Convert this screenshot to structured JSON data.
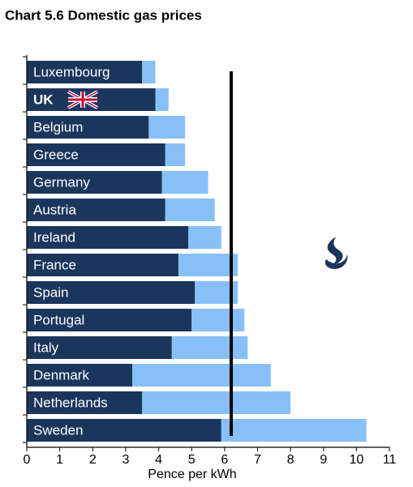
{
  "chart_data": {
    "type": "stacked-bar-horizontal",
    "title": "Chart 5.6 Domestic gas prices",
    "categories": [
      "Luxembourg",
      "UK",
      "Belgium",
      "Greece",
      "Germany",
      "Austria",
      "Ireland",
      "France",
      "Spain",
      "Portugal",
      "Italy",
      "Denmark",
      "Netherlands",
      "Sweden"
    ],
    "series": [
      {
        "color": "#1b365d",
        "values": [
          3.5,
          3.9,
          3.7,
          4.2,
          4.1,
          4.2,
          4.9,
          4.6,
          5.1,
          5.0,
          4.4,
          3.2,
          3.5,
          5.9
        ]
      },
      {
        "color": "#87c0f7",
        "values": [
          0.4,
          0.4,
          1.1,
          0.6,
          1.4,
          1.5,
          1.0,
          1.8,
          1.3,
          1.6,
          2.3,
          4.2,
          4.5,
          4.4
        ]
      }
    ],
    "reference_value": 6.2,
    "xlim": [
      0,
      11
    ],
    "xticks": [
      0,
      1,
      2,
      3,
      4,
      5,
      6,
      7,
      8,
      9,
      10,
      11
    ],
    "xlabel": "Pence per kWh"
  }
}
